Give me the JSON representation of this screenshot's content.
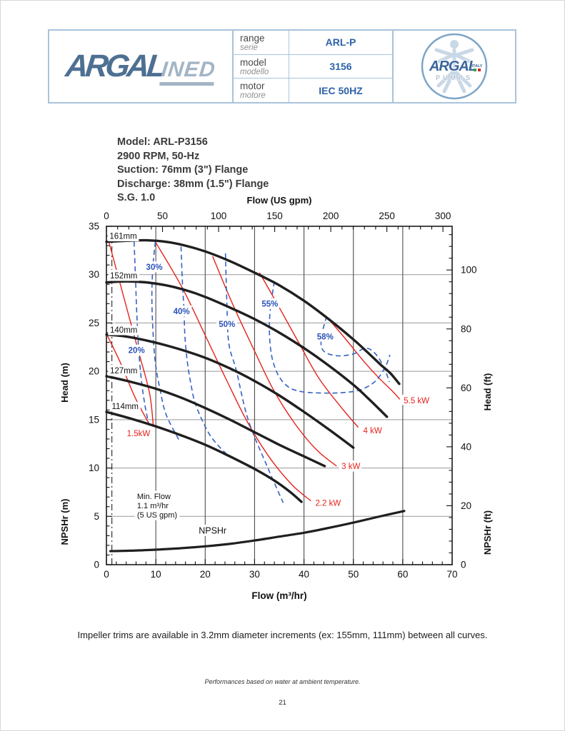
{
  "header": {
    "logo": {
      "brand": "ARGAL",
      "suffix": "INED"
    },
    "table": {
      "rows": [
        {
          "label": "range",
          "sublabel": "serie",
          "value": "ARL-P"
        },
        {
          "label": "model",
          "sublabel": "modello",
          "value": "3156"
        },
        {
          "label": "motor",
          "sublabel": "motore",
          "value": "IEC 50HZ"
        }
      ]
    },
    "badge": {
      "brand": "ARGAL",
      "country": "ITALY",
      "word": "PUMPS"
    }
  },
  "info_block": {
    "lines": [
      "Model: ARL-P3156",
      "2900 RPM, 50-Hz",
      "Suction: 76mm (3\") Flange",
      "Discharge: 38mm (1.5\") Flange",
      "S.G. 1.0"
    ]
  },
  "chart_data": {
    "type": "line",
    "title_top": "Flow (US gpm)",
    "xlabel_bottom": "Flow (m³/hr)",
    "ylabel_left_top": "Head (m)",
    "ylabel_left_bottom": "NPSHr (m)",
    "ylabel_right_top": "Head (ft)",
    "ylabel_right_bottom": "NPSHr (ft)",
    "x_bottom": {
      "min": 0,
      "max": 70,
      "ticks": [
        0,
        10,
        20,
        30,
        40,
        50,
        60,
        70
      ],
      "minor_step": 2
    },
    "x_top": {
      "ticks": [
        0,
        50,
        100,
        150,
        200,
        250,
        300
      ],
      "minor_step": 10,
      "scale_gpm_to_m3hr": 0.227124
    },
    "y_left": {
      "min": 0,
      "max": 35,
      "ticks": [
        0,
        5,
        10,
        15,
        20,
        25,
        30,
        35
      ],
      "minor_step": 1
    },
    "y_right": {
      "ticks": [
        0,
        20,
        40,
        60,
        80,
        100
      ],
      "minor_step": 4,
      "scale_ft_to_m": 0.3048
    },
    "grid": {
      "x_values": [
        10,
        20,
        30,
        40,
        50,
        60
      ],
      "y_values": [
        5,
        10,
        15,
        20,
        25,
        30
      ]
    },
    "min_flow_line": {
      "x": 1.1,
      "y_top": 33.4,
      "note_lines": [
        "Min. Flow",
        "1.1 m³/hr",
        "(5 US gpm)"
      ],
      "note_pos": [
        6.2,
        6.8
      ]
    },
    "impeller_curves": [
      {
        "label": "161mm",
        "label_pos": [
          3.4,
          34.0
        ],
        "points": [
          [
            0,
            33.4
          ],
          [
            4,
            33.5
          ],
          [
            8,
            33.55
          ],
          [
            12,
            33.4
          ],
          [
            16,
            33.0
          ],
          [
            20,
            32.4
          ],
          [
            25,
            31.4
          ],
          [
            30,
            30.2
          ],
          [
            35,
            28.9
          ],
          [
            40,
            27.3
          ],
          [
            45,
            25.4
          ],
          [
            50,
            23.3
          ],
          [
            53,
            21.9
          ],
          [
            55.5,
            20.7
          ],
          [
            57.5,
            19.8
          ],
          [
            59.3,
            18.7
          ]
        ]
      },
      {
        "label": "152mm",
        "label_pos": [
          3.5,
          29.9
        ],
        "points": [
          [
            0,
            29.2
          ],
          [
            4,
            29.3
          ],
          [
            8,
            29.2
          ],
          [
            12,
            28.9
          ],
          [
            16,
            28.4
          ],
          [
            20,
            27.7
          ],
          [
            25,
            26.6
          ],
          [
            30,
            25.4
          ],
          [
            35,
            24.0
          ],
          [
            40,
            22.4
          ],
          [
            45,
            20.6
          ],
          [
            50,
            18.6
          ],
          [
            53,
            17.2
          ],
          [
            56.8,
            15.3
          ]
        ]
      },
      {
        "label": "140mm",
        "label_pos": [
          3.5,
          24.3
        ],
        "points": [
          [
            0,
            23.8
          ],
          [
            4,
            23.6
          ],
          [
            8,
            23.2
          ],
          [
            12,
            22.7
          ],
          [
            16,
            22.1
          ],
          [
            20,
            21.4
          ],
          [
            25,
            20.3
          ],
          [
            30,
            19.0
          ],
          [
            35,
            17.5
          ],
          [
            40,
            15.8
          ],
          [
            45,
            14.0
          ],
          [
            50,
            12.1
          ]
        ]
      },
      {
        "label": "127mm",
        "label_pos": [
          3.5,
          20.1
        ],
        "points": [
          [
            0,
            19.5
          ],
          [
            5,
            18.9
          ],
          [
            10,
            18.2
          ],
          [
            15,
            17.3
          ],
          [
            20,
            16.2
          ],
          [
            25,
            15.0
          ],
          [
            30,
            13.7
          ],
          [
            35,
            12.4
          ],
          [
            40,
            11.2
          ],
          [
            44.2,
            10.2
          ]
        ]
      },
      {
        "label": "114mm",
        "label_pos": [
          3.8,
          16.4
        ],
        "points": [
          [
            0,
            15.8
          ],
          [
            5,
            15.1
          ],
          [
            10,
            14.3
          ],
          [
            15,
            13.4
          ],
          [
            20,
            12.4
          ],
          [
            25,
            11.2
          ],
          [
            30,
            9.9
          ],
          [
            34,
            8.7
          ],
          [
            37,
            7.6
          ],
          [
            39.5,
            6.5
          ]
        ]
      }
    ],
    "efficiency_curves": [
      {
        "label": "20%",
        "label_pos": [
          6.1,
          22.2
        ],
        "points": [
          [
            5.6,
            33.4
          ],
          [
            5.9,
            29.5
          ],
          [
            6.1,
            26.5
          ],
          [
            6.5,
            22.5
          ],
          [
            7.1,
            19.0
          ],
          [
            7.8,
            16.5
          ],
          [
            8.5,
            14.7
          ]
        ]
      },
      {
        "label": "30%",
        "label_pos": [
          9.7,
          30.8
        ],
        "points": [
          [
            9.9,
            33.4
          ],
          [
            9.4,
            30.8
          ],
          [
            9.2,
            27.8
          ],
          [
            9.4,
            24.4
          ],
          [
            9.9,
            20.9
          ],
          [
            10.9,
            18.0
          ],
          [
            12.1,
            15.5
          ],
          [
            14.8,
            12.8
          ]
        ]
      },
      {
        "label": "40%",
        "label_pos": [
          15.2,
          26.2
        ],
        "points": [
          [
            15.1,
            32.9
          ],
          [
            15.4,
            29.0
          ],
          [
            15.7,
            26.4
          ],
          [
            15.9,
            23.6
          ],
          [
            16.4,
            20.9
          ],
          [
            17.1,
            18.7
          ],
          [
            18.1,
            16.5
          ],
          [
            20.5,
            13.8
          ],
          [
            22.5,
            12.4
          ],
          [
            25,
            11.1
          ]
        ]
      },
      {
        "label": "50%",
        "label_pos": [
          24.4,
          24.9
        ],
        "points": [
          [
            24.1,
            32.2
          ],
          [
            24.4,
            26.8
          ],
          [
            24.8,
            22.8
          ],
          [
            26.3,
            20.1
          ],
          [
            28.7,
            15.0
          ],
          [
            32.6,
            10.1
          ],
          [
            35.8,
            6.4
          ]
        ]
      },
      {
        "label": "55%",
        "label_pos": [
          33.1,
          27.0
        ],
        "points": [
          [
            34,
            29.3
          ],
          [
            33.2,
            26.5
          ],
          [
            33.0,
            24.0
          ],
          [
            33.5,
            21.5
          ],
          [
            34.8,
            19.6
          ],
          [
            36.8,
            18.4
          ],
          [
            39.5,
            17.9
          ],
          [
            44,
            17.75
          ],
          [
            48,
            17.8
          ],
          [
            51.5,
            18.1
          ],
          [
            54.5,
            19.0
          ],
          [
            56.5,
            20.5
          ],
          [
            57.4,
            21.7
          ]
        ]
      },
      {
        "label": "58%",
        "label_pos": [
          44.3,
          23.6
        ],
        "points": [
          [
            44.6,
            25.7
          ],
          [
            43.7,
            24.0
          ],
          [
            43.5,
            22.6
          ],
          [
            44.5,
            21.9
          ],
          [
            47,
            21.6
          ],
          [
            50,
            21.8
          ],
          [
            52.5,
            22.4
          ],
          [
            54.5,
            21.8
          ],
          [
            56.2,
            20.4
          ],
          [
            57.3,
            18.9
          ]
        ]
      }
    ],
    "power_lines": [
      {
        "label": "1.5kW",
        "label_pos": [
          6.5,
          13.6
        ],
        "label_anchor": "middle",
        "points": [
          [
            0.5,
            33.4
          ],
          [
            2.7,
            29.2
          ],
          [
            6.3,
            22.4
          ],
          [
            8.7,
            17.8
          ],
          [
            9.5,
            14.3
          ]
        ]
      },
      {
        "label": "",
        "label_pos": [
          0,
          0
        ],
        "label_anchor": "start",
        "points": [
          [
            0,
            23.9
          ],
          [
            2.9,
            20.8
          ],
          [
            5.8,
            17.3
          ],
          [
            8.6,
            14.6
          ]
        ]
      },
      {
        "label": "2.2 kW",
        "label_pos": [
          42.3,
          6.4
        ],
        "label_anchor": "start",
        "points": [
          [
            9.9,
            33.4
          ],
          [
            15.4,
            28.6
          ],
          [
            20.2,
            23.5
          ],
          [
            24.5,
            18.9
          ],
          [
            28.5,
            14.8
          ],
          [
            33,
            11.1
          ],
          [
            37.5,
            8.3
          ],
          [
            41.4,
            6.6
          ]
        ]
      },
      {
        "label": "3 kW",
        "label_pos": [
          47.6,
          10.2
        ],
        "label_anchor": "start",
        "points": [
          [
            21.5,
            31.9
          ],
          [
            25.6,
            26.9
          ],
          [
            29.9,
            22.2
          ],
          [
            33.7,
            18.2
          ],
          [
            38,
            14.7
          ],
          [
            42.5,
            11.9
          ],
          [
            46.6,
            10.2
          ]
        ]
      },
      {
        "label": "4 kW",
        "label_pos": [
          52.0,
          13.9
        ],
        "label_anchor": "start",
        "points": [
          [
            31,
            30.2
          ],
          [
            35,
            26.6
          ],
          [
            39,
            22.9
          ],
          [
            43,
            19.3
          ],
          [
            47.5,
            16.3
          ],
          [
            51,
            14.2
          ]
        ]
      },
      {
        "label": "5.5 kW",
        "label_pos": [
          60.2,
          17.0
        ],
        "label_anchor": "start",
        "points": [
          [
            45,
            25.4
          ],
          [
            48.5,
            23.3
          ],
          [
            52,
            21.1
          ],
          [
            55,
            19.4
          ],
          [
            58,
            17.9
          ],
          [
            59.4,
            17.1
          ]
        ]
      }
    ],
    "npshr_curve": {
      "label": "NPSHr",
      "label_pos": [
        21.5,
        3.2
      ],
      "points": [
        [
          0.8,
          1.4
        ],
        [
          5,
          1.45
        ],
        [
          10,
          1.55
        ],
        [
          15,
          1.7
        ],
        [
          20,
          1.9
        ],
        [
          25,
          2.15
        ],
        [
          30,
          2.5
        ],
        [
          35,
          2.9
        ],
        [
          40,
          3.3
        ],
        [
          45,
          3.8
        ],
        [
          50,
          4.35
        ],
        [
          55,
          4.95
        ],
        [
          60.3,
          5.55
        ]
      ]
    },
    "colors": {
      "curve": "#1f1f1f",
      "efficiency": "#3462c3",
      "power": "#e5231c",
      "grid_vertical": "#4d4d4d",
      "grid_horizontal": "#999999",
      "border": "#1a1a1a",
      "text": "#111111"
    }
  },
  "footer": {
    "note": "Impeller trims are available in 3.2mm diameter increments (ex: 155mm,  111mm) between all curves.",
    "disclaimer": "Performances based on water at ambient temperature.",
    "page_number": "21"
  }
}
